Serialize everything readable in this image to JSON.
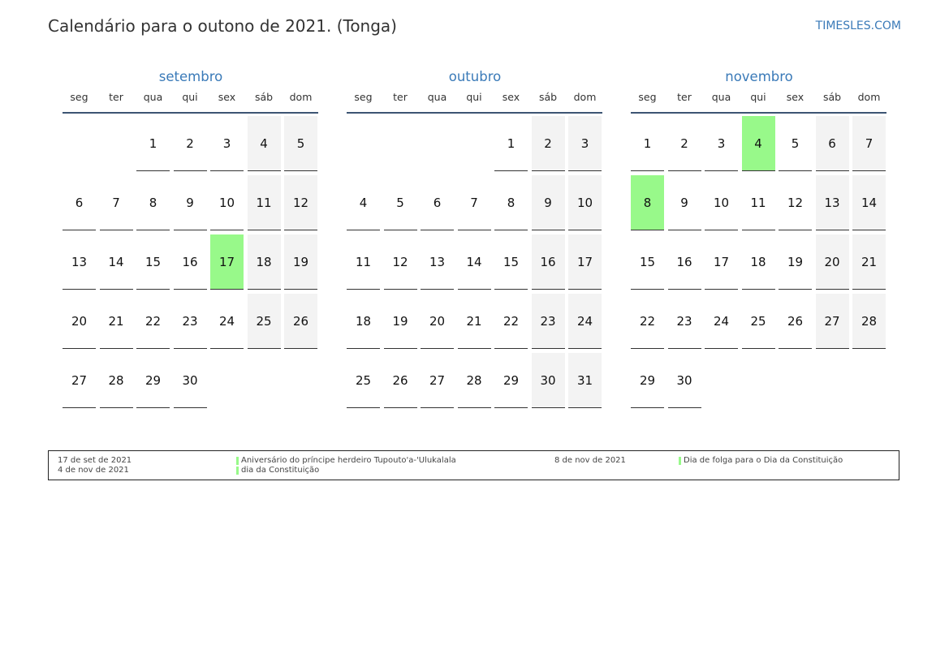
{
  "title": "Calendário para o outono de 2021. (Tonga)",
  "site": "TIMESLES.COM",
  "colors": {
    "accent": "#3a7ab8",
    "holiday": "#98f98a",
    "weekend": "#f3f3f3"
  },
  "weekdays": [
    "seg",
    "ter",
    "qua",
    "qui",
    "sex",
    "sáb",
    "dom"
  ],
  "months": [
    {
      "name": "setembro",
      "offset": 2,
      "days": 30,
      "holidays": [
        17
      ]
    },
    {
      "name": "outubro",
      "offset": 4,
      "days": 31,
      "holidays": []
    },
    {
      "name": "novembro",
      "offset": 0,
      "days": 30,
      "holidays": [
        4,
        8
      ]
    }
  ],
  "legend": {
    "left_dates": [
      "17 de set de 2021",
      "4 de nov de 2021"
    ],
    "left_events": [
      "Aniversário do príncipe herdeiro Tupouto'a-'Ulukalala",
      "dia da Constituição"
    ],
    "right_dates": [
      "8 de nov de 2021"
    ],
    "right_events": [
      "Dia de folga para o Dia da Constituição"
    ]
  }
}
